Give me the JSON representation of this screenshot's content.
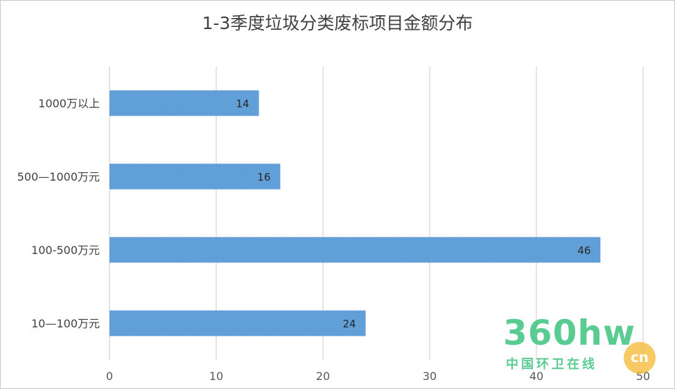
{
  "chart_data": {
    "type": "bar",
    "orientation": "horizontal",
    "title": "1-3季度垃圾分类废标项目金额分布",
    "categories": [
      "1000万以上",
      "500—1000万元",
      "100-500万元",
      "10—100万元"
    ],
    "values": [
      14,
      16,
      46,
      24
    ],
    "xlim": [
      0,
      50
    ],
    "xticks": [
      0,
      10,
      20,
      30,
      40,
      50
    ],
    "xlabel": "",
    "ylabel": "",
    "grid": true,
    "legend": "none",
    "bar_color": "#5b9bd5",
    "data_labels": true
  },
  "watermark": {
    "main": "360hw",
    "sub": "中国环卫在线",
    "badge": "cn",
    "color": "#3ec47e",
    "badge_color": "#f5b82e"
  }
}
